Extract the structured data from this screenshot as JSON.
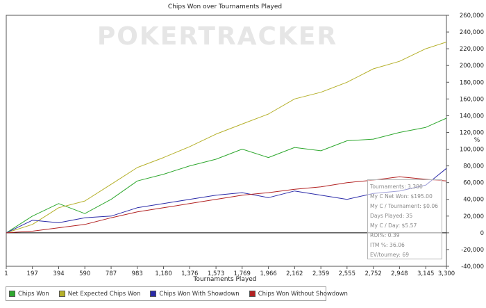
{
  "chart_data": {
    "type": "line",
    "title": "Chips Won over Tournaments Played",
    "xlabel": "Tournaments Played",
    "ylabel": "%",
    "xlim": [
      1,
      3300
    ],
    "ylim": [
      -40000,
      260000
    ],
    "x_ticks": [
      "1",
      "197",
      "394",
      "590",
      "787",
      "983",
      "1,180",
      "1,376",
      "1,573",
      "1,769",
      "1,966",
      "2,162",
      "2,359",
      "2,555",
      "2,752",
      "2,948",
      "3,145",
      "3,300"
    ],
    "y_ticks": [
      "-40,000",
      "-20,000",
      "0",
      "20,000",
      "40,000",
      "60,000",
      "80,000",
      "100,000",
      "120,000",
      "140,000",
      "160,000",
      "180,000",
      "200,000",
      "220,000",
      "240,000",
      "260,000"
    ],
    "grid": false,
    "legend_position": "bottom",
    "watermark": "POKERTRACKER",
    "series": [
      {
        "name": "Chips Won",
        "color": "#2fa82f",
        "x": [
          1,
          197,
          394,
          590,
          787,
          983,
          1180,
          1376,
          1573,
          1769,
          1966,
          2162,
          2359,
          2555,
          2752,
          2948,
          3145,
          3300
        ],
        "y": [
          0,
          20000,
          35000,
          23000,
          40000,
          62000,
          70000,
          80000,
          88000,
          100000,
          90000,
          102000,
          98000,
          110000,
          112000,
          120000,
          126000,
          137000
        ]
      },
      {
        "name": "Net Expected Chips Won",
        "color": "#b5b02a",
        "x": [
          1,
          197,
          394,
          590,
          787,
          983,
          1180,
          1376,
          1573,
          1769,
          1966,
          2162,
          2359,
          2555,
          2752,
          2948,
          3145,
          3300
        ],
        "y": [
          0,
          10000,
          30000,
          38000,
          58000,
          78000,
          90000,
          103000,
          118000,
          130000,
          142000,
          160000,
          168000,
          180000,
          196000,
          205000,
          220000,
          228000
        ]
      },
      {
        "name": "Chips Won With Showdown",
        "color": "#2a2aa8",
        "x": [
          1,
          197,
          394,
          590,
          787,
          983,
          1180,
          1376,
          1573,
          1769,
          1966,
          2162,
          2359,
          2555,
          2752,
          2948,
          3145,
          3300
        ],
        "y": [
          0,
          15000,
          12000,
          18000,
          20000,
          30000,
          35000,
          40000,
          45000,
          48000,
          42000,
          50000,
          45000,
          40000,
          47000,
          50000,
          57000,
          77000
        ]
      },
      {
        "name": "Chips Won Without Showdown",
        "color": "#b22222",
        "x": [
          1,
          197,
          394,
          590,
          787,
          983,
          1180,
          1376,
          1573,
          1769,
          1966,
          2162,
          2359,
          2555,
          2752,
          2948,
          3145,
          3300
        ],
        "y": [
          0,
          2000,
          6000,
          10000,
          18000,
          25000,
          30000,
          35000,
          40000,
          45000,
          48000,
          52000,
          55000,
          60000,
          63000,
          67000,
          64000,
          62000
        ]
      }
    ]
  },
  "stats": {
    "lines": [
      "Tournaments: 3,300",
      "My C Net Won: $195.00",
      "My C / Tournament: $0.06",
      "Days Played: 35",
      "My C / Day: $5.57",
      "ROI%: 0.39",
      "ITM %: 36.06",
      "EV/tourney: 69"
    ]
  }
}
